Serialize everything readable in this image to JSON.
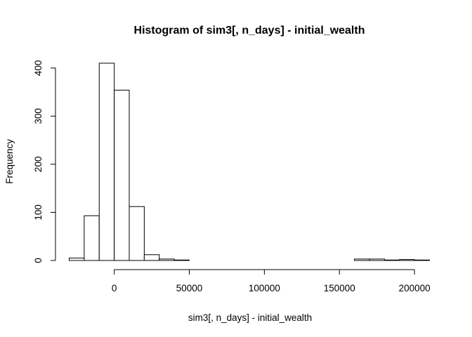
{
  "chart_data": {
    "type": "bar",
    "title": "Histogram of sim3[, n_days] - initial_wealth",
    "xlabel": "sim3[, n_days] - initial_wealth",
    "ylabel": "Frequency",
    "bin_width": 10000,
    "bins": [
      {
        "start": -30000,
        "end": -20000,
        "count": 5
      },
      {
        "start": -20000,
        "end": -10000,
        "count": 93
      },
      {
        "start": -10000,
        "end": 0,
        "count": 410
      },
      {
        "start": 0,
        "end": 10000,
        "count": 354
      },
      {
        "start": 10000,
        "end": 20000,
        "count": 112
      },
      {
        "start": 20000,
        "end": 30000,
        "count": 12
      },
      {
        "start": 30000,
        "end": 40000,
        "count": 3
      },
      {
        "start": 40000,
        "end": 50000,
        "count": 1
      },
      {
        "start": 50000,
        "end": 60000,
        "count": 0
      },
      {
        "start": 60000,
        "end": 70000,
        "count": 0
      },
      {
        "start": 70000,
        "end": 80000,
        "count": 0
      },
      {
        "start": 80000,
        "end": 90000,
        "count": 0
      },
      {
        "start": 90000,
        "end": 100000,
        "count": 0
      },
      {
        "start": 100000,
        "end": 110000,
        "count": 0
      },
      {
        "start": 110000,
        "end": 120000,
        "count": 0
      },
      {
        "start": 120000,
        "end": 130000,
        "count": 0
      },
      {
        "start": 130000,
        "end": 140000,
        "count": 0
      },
      {
        "start": 140000,
        "end": 150000,
        "count": 0
      },
      {
        "start": 150000,
        "end": 160000,
        "count": 0
      },
      {
        "start": 160000,
        "end": 170000,
        "count": 3
      },
      {
        "start": 170000,
        "end": 180000,
        "count": 3
      },
      {
        "start": 180000,
        "end": 190000,
        "count": 1
      },
      {
        "start": 190000,
        "end": 200000,
        "count": 2
      },
      {
        "start": 200000,
        "end": 210000,
        "count": 1
      }
    ],
    "x_ticks": [
      0,
      50000,
      100000,
      150000,
      200000
    ],
    "x_tick_labels": [
      "0",
      "50000",
      "100000",
      "150000",
      "200000"
    ],
    "y_ticks": [
      0,
      100,
      200,
      300,
      400
    ],
    "y_tick_labels": [
      "0",
      "100",
      "200",
      "300",
      "400"
    ],
    "xlim": [
      -30000,
      210000
    ],
    "ylim": [
      0,
      410
    ],
    "grid": false,
    "legend": "none"
  }
}
